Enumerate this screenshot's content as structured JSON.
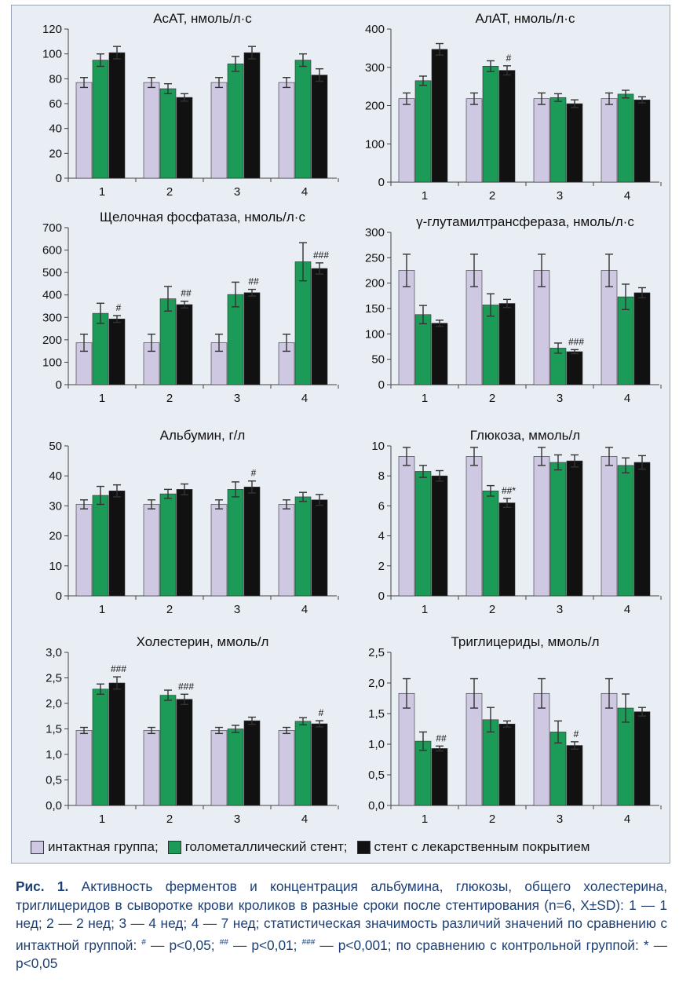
{
  "colors": {
    "intact": "#cfc8e2",
    "bare_metal": "#1b9a58",
    "drug": "#111111",
    "panel_bg": "#e9edf4",
    "caption_accent": "#1d3f73"
  },
  "legend": {
    "items": [
      {
        "label": "интактная группа;",
        "color": "#cfc8e2"
      },
      {
        "label": "голометаллический стент;",
        "color": "#1b9a58"
      },
      {
        "label": "стент с лекарственным покрытием",
        "color": "#111111"
      }
    ]
  },
  "caption": {
    "label": "Рис. 1.",
    "text_head": " Активность ферментов и концентрация альбумина, глюкозы, общего холестерина, триглицеридов в сыворотке крови кроликов в разные сроки после стентирования (n=6, X±SD): ",
    "text_body": "1 — 1 нед; 2 — 2 нед; 3 — 4 нед; 4 — 7 нед; статистическая значимость различий значений по сравнению с интактной группой: ",
    "sig1_mark": "#",
    "sig1_text": " — p<0,05; ",
    "sig2_mark": "##",
    "sig2_text": " — p<0,01; ",
    "sig3_mark": "###",
    "sig3_text": " — p<0,001; по сравнению с контрольной группой: * — p<0,05"
  },
  "chart_data": [
    {
      "type": "bar",
      "title": "АсАТ, нмоль/л·с",
      "categories": [
        "1",
        "2",
        "3",
        "4"
      ],
      "ylim": [
        0,
        120
      ],
      "yticks": [
        "0",
        "20",
        "40",
        "60",
        "80",
        "100",
        "120"
      ],
      "series": [
        {
          "name": "интактная группа",
          "values": [
            77,
            77,
            77,
            77
          ],
          "errors": [
            4,
            4,
            4,
            4
          ]
        },
        {
          "name": "голометаллический стент",
          "values": [
            95,
            72,
            92,
            95
          ],
          "errors": [
            5,
            4,
            6,
            5
          ]
        },
        {
          "name": "стент с лекарственным покрытием",
          "values": [
            101,
            65,
            101,
            83
          ],
          "errors": [
            5,
            3,
            5,
            5
          ]
        }
      ],
      "annotations": []
    },
    {
      "type": "bar",
      "title": "АлАТ, нмоль/л·с",
      "categories": [
        "1",
        "2",
        "3",
        "4"
      ],
      "ylim": [
        0,
        400
      ],
      "yticks": [
        "0",
        "100",
        "200",
        "300",
        "400"
      ],
      "series": [
        {
          "name": "интактная группа",
          "values": [
            218,
            218,
            218,
            218
          ],
          "errors": [
            15,
            15,
            15,
            15
          ]
        },
        {
          "name": "голометаллический стент",
          "values": [
            265,
            303,
            221,
            230
          ],
          "errors": [
            12,
            14,
            10,
            10
          ]
        },
        {
          "name": "стент с лекарственным покрытием",
          "values": [
            347,
            292,
            205,
            215
          ],
          "errors": [
            15,
            12,
            10,
            8
          ]
        }
      ],
      "annotations": [
        {
          "category": 1,
          "series": 2,
          "text": "#"
        }
      ]
    },
    {
      "type": "bar",
      "title": "Щелочная фосфатаза, нмоль/л·с",
      "categories": [
        "1",
        "2",
        "3",
        "4"
      ],
      "ylim": [
        0,
        700
      ],
      "yticks": [
        "0",
        "100",
        "200",
        "300",
        "400",
        "500",
        "600",
        "700"
      ],
      "series": [
        {
          "name": "интактная группа",
          "values": [
            187,
            187,
            187,
            187
          ],
          "errors": [
            38,
            38,
            38,
            38
          ]
        },
        {
          "name": "голометаллический стент",
          "values": [
            318,
            383,
            402,
            548
          ],
          "errors": [
            45,
            55,
            55,
            85
          ]
        },
        {
          "name": "стент с лекарственным покрытием",
          "values": [
            293,
            357,
            410,
            518
          ],
          "errors": [
            15,
            15,
            15,
            25
          ]
        }
      ],
      "annotations": [
        {
          "category": 0,
          "series": 2,
          "text": "#"
        },
        {
          "category": 1,
          "series": 2,
          "text": "##"
        },
        {
          "category": 2,
          "series": 2,
          "text": "##"
        },
        {
          "category": 3,
          "series": 2,
          "text": "###"
        }
      ]
    },
    {
      "type": "bar",
      "title": "γ-глутамилтрансфераза, нмоль/л·с",
      "categories": [
        "1",
        "2",
        "3",
        "4"
      ],
      "ylim": [
        0,
        300
      ],
      "yticks": [
        "0",
        "50",
        "100",
        "150",
        "200",
        "250",
        "300"
      ],
      "series": [
        {
          "name": "интактная группа",
          "values": [
            225,
            225,
            225,
            225
          ],
          "errors": [
            32,
            32,
            32,
            32
          ]
        },
        {
          "name": "голометаллический стент",
          "values": [
            138,
            157,
            72,
            173
          ],
          "errors": [
            18,
            22,
            10,
            25
          ]
        },
        {
          "name": "стент с лекарственным покрытием",
          "values": [
            121,
            160,
            65,
            181
          ],
          "errors": [
            6,
            8,
            4,
            10
          ]
        }
      ],
      "annotations": [
        {
          "category": 2,
          "series": 2,
          "text": "###"
        }
      ]
    },
    {
      "type": "bar",
      "title": "Альбумин, г/л",
      "categories": [
        "1",
        "2",
        "3",
        "4"
      ],
      "ylim": [
        0,
        50
      ],
      "yticks": [
        "0",
        "10",
        "20",
        "30",
        "40",
        "50"
      ],
      "series": [
        {
          "name": "интактная группа",
          "values": [
            30.5,
            30.5,
            30.5,
            30.5
          ],
          "errors": [
            1.5,
            1.5,
            1.5,
            1.5
          ]
        },
        {
          "name": "голометаллический стент",
          "values": [
            33.5,
            34,
            35.5,
            33
          ],
          "errors": [
            3,
            1.5,
            2.5,
            1.5
          ]
        },
        {
          "name": "стент с лекарственным покрытием",
          "values": [
            35,
            35.5,
            36.3,
            32
          ],
          "errors": [
            2,
            1.8,
            2,
            1.8
          ]
        }
      ],
      "annotations": [
        {
          "category": 2,
          "series": 2,
          "text": "#"
        }
      ]
    },
    {
      "type": "bar",
      "title": "Глюкоза, ммоль/л",
      "categories": [
        "1",
        "2",
        "3",
        "4"
      ],
      "ylim": [
        0,
        10
      ],
      "yticks": [
        "0",
        "2",
        "4",
        "6",
        "8",
        "10"
      ],
      "series": [
        {
          "name": "интактная группа",
          "values": [
            9.3,
            9.3,
            9.3,
            9.3
          ],
          "errors": [
            0.6,
            0.6,
            0.6,
            0.6
          ]
        },
        {
          "name": "голометаллический стент",
          "values": [
            8.3,
            7.0,
            8.9,
            8.7
          ],
          "errors": [
            0.4,
            0.35,
            0.5,
            0.5
          ]
        },
        {
          "name": "стент с лекарственным покрытием",
          "values": [
            8.0,
            6.2,
            9.0,
            8.9
          ],
          "errors": [
            0.35,
            0.3,
            0.4,
            0.45
          ]
        }
      ],
      "annotations": [
        {
          "category": 1,
          "series": 2,
          "text": "##*"
        }
      ]
    },
    {
      "type": "bar",
      "title": "Холестерин, ммоль/л",
      "categories": [
        "1",
        "2",
        "3",
        "4"
      ],
      "ylim": [
        0,
        3
      ],
      "yticks": [
        "0,0",
        "0,5",
        "1,0",
        "1,5",
        "2,0",
        "2,5",
        "3,0"
      ],
      "series": [
        {
          "name": "интактная группа",
          "values": [
            1.47,
            1.47,
            1.47,
            1.47
          ],
          "errors": [
            0.06,
            0.06,
            0.06,
            0.06
          ]
        },
        {
          "name": "голометаллический стент",
          "values": [
            2.28,
            2.16,
            1.5,
            1.65
          ],
          "errors": [
            0.1,
            0.1,
            0.07,
            0.07
          ]
        },
        {
          "name": "стент с лекарственным покрытием",
          "values": [
            2.4,
            2.08,
            1.66,
            1.6
          ],
          "errors": [
            0.12,
            0.1,
            0.07,
            0.06
          ]
        }
      ],
      "annotations": [
        {
          "category": 0,
          "series": 2,
          "text": "###"
        },
        {
          "category": 1,
          "series": 2,
          "text": "###"
        },
        {
          "category": 3,
          "series": 2,
          "text": "#"
        }
      ]
    },
    {
      "type": "bar",
      "title": "Триглицериды, ммоль/л",
      "categories": [
        "1",
        "2",
        "3",
        "4"
      ],
      "ylim": [
        0,
        2.5
      ],
      "yticks": [
        "0,0",
        "0,5",
        "1,0",
        "1,5",
        "2,0",
        "2,5"
      ],
      "series": [
        {
          "name": "интактная группа",
          "values": [
            1.83,
            1.83,
            1.83,
            1.83
          ],
          "errors": [
            0.24,
            0.24,
            0.24,
            0.24
          ]
        },
        {
          "name": "голометаллический стент",
          "values": [
            1.05,
            1.4,
            1.2,
            1.59
          ],
          "errors": [
            0.15,
            0.2,
            0.18,
            0.23
          ]
        },
        {
          "name": "стент с лекарственным покрытием",
          "values": [
            0.93,
            1.33,
            0.98,
            1.53
          ],
          "errors": [
            0.04,
            0.05,
            0.06,
            0.07
          ]
        }
      ],
      "annotations": [
        {
          "category": 0,
          "series": 2,
          "text": "##"
        },
        {
          "category": 2,
          "series": 2,
          "text": "#"
        }
      ]
    }
  ]
}
